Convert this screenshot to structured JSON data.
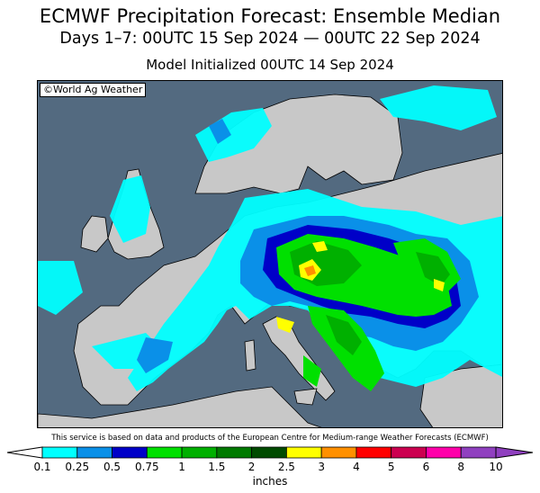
{
  "title": "ECMWF Precipitation Forecast: Ensemble Median",
  "subtitle": "Days 1–7: 00UTC 15 Sep 2024 — 00UTC 22 Sep 2024",
  "init_line": "Model Initialized 00UTC 14 Sep 2024",
  "credit": "©World Ag Weather",
  "disclaimer": "This service is based on data and products of the European Centre for Medium-range Weather Forecasts (ECMWF)",
  "legend": {
    "units": "inches",
    "ticks": [
      "0.1",
      "0.25",
      "0.5",
      "0.75",
      "1",
      "1.5",
      "2",
      "2.5",
      "3",
      "4",
      "5",
      "6",
      "8",
      "10"
    ],
    "colors": [
      "#00ffff",
      "#0a90e8",
      "#0000c8",
      "#00e000",
      "#00b000",
      "#007a00",
      "#004b00",
      "#ffff00",
      "#ff9000",
      "#ff0000",
      "#cc0050",
      "#ff00aa",
      "#9040c0"
    ]
  },
  "map_colors": {
    "ocean": "#536a80",
    "land": "#c8c8c8",
    "light": "#00ffff",
    "moderate": "#0a90e8",
    "heavy": "#0000c8",
    "green": "#00e000",
    "green_dark": "#00b000",
    "green_darker": "#007a00",
    "yellow": "#ffff00",
    "orange": "#ff9000"
  }
}
